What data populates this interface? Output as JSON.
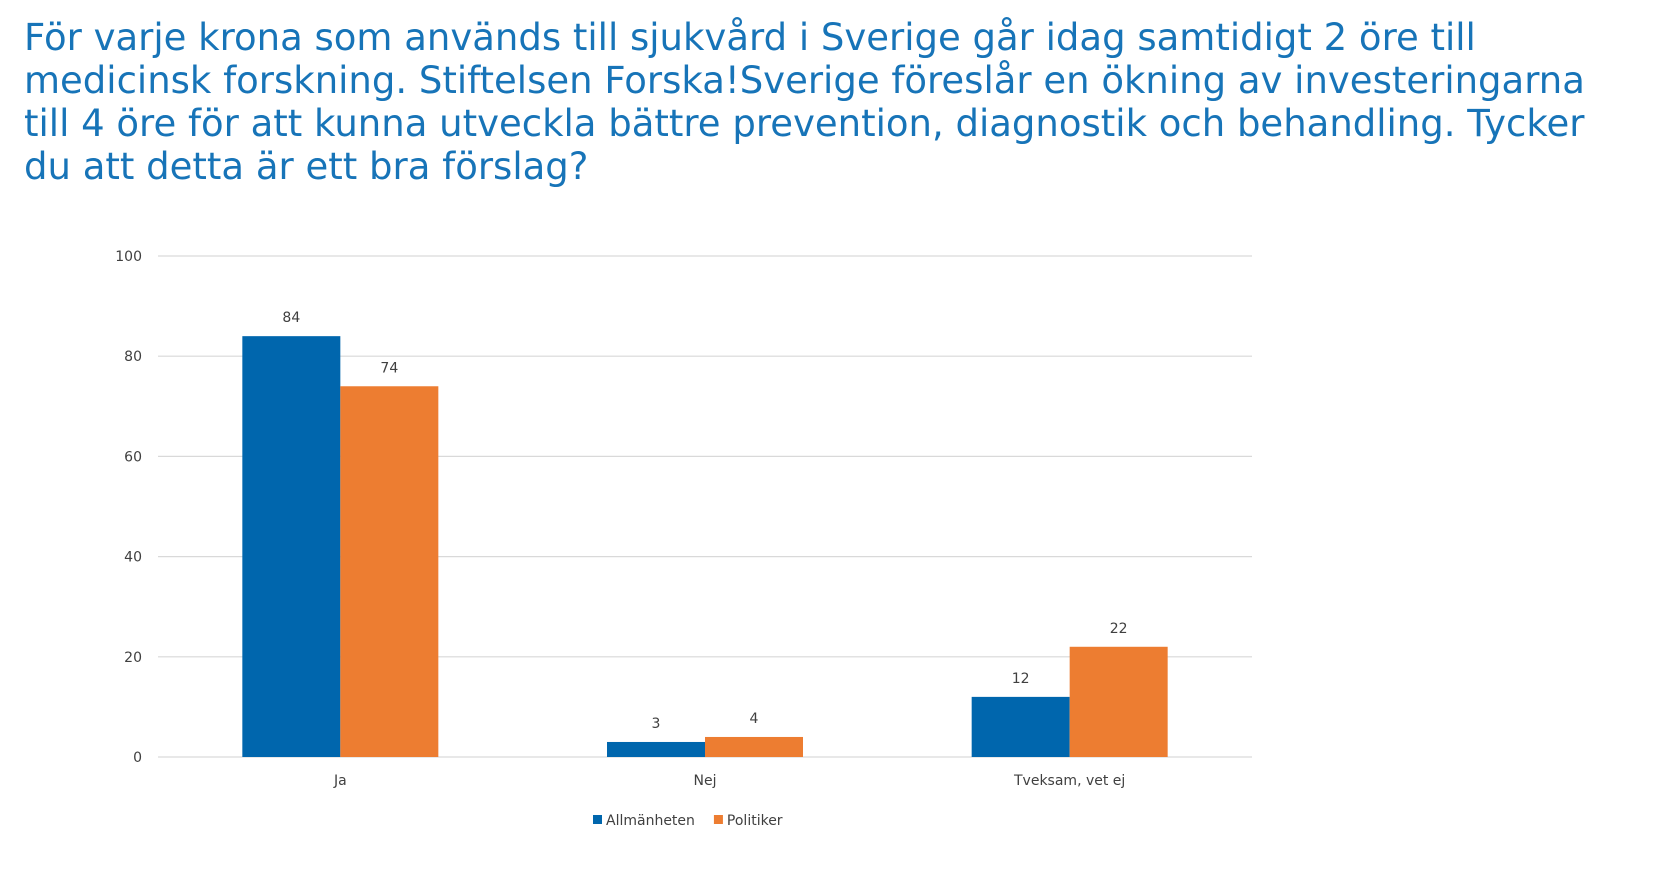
{
  "slide": {
    "title": "För varje krona som används till sjukvård i Sverige går idag samtidigt 2 öre till medicinsk forskning. Stiftelsen Forska!Sverige föreslår en ökning av investeringarna till 4 öre för att kunna utveckla bättre prevention, diagnostik och behandling. Tycker du att detta är ett bra förslag?"
  },
  "chart_data": {
    "type": "bar",
    "title": "",
    "xlabel": "",
    "ylabel": "",
    "categories": [
      "Ja",
      "Nej",
      "Tveksam, vet ej"
    ],
    "series": [
      {
        "name": "Allmänheten",
        "values": [
          84,
          3,
          12
        ],
        "color": "#0066ad"
      },
      {
        "name": "Politiker",
        "values": [
          74,
          4,
          22
        ],
        "color": "#ed7d31"
      }
    ],
    "data_labels": [
      [
        "84",
        "3",
        "12"
      ],
      [
        "74",
        "4",
        "22"
      ]
    ],
    "ylim": [
      0,
      100
    ],
    "yticks": [
      0,
      20,
      40,
      60,
      80,
      100
    ],
    "grid": true,
    "gridline_color": "#d9d9d9",
    "legend_position": "bottom"
  }
}
